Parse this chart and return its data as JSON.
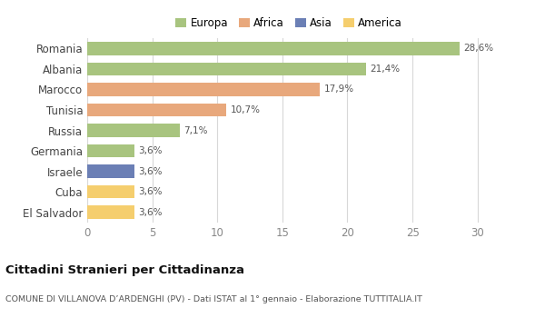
{
  "categories": [
    "Romania",
    "Albania",
    "Marocco",
    "Tunisia",
    "Russia",
    "Germania",
    "Israele",
    "Cuba",
    "El Salvador"
  ],
  "values": [
    28.6,
    21.4,
    17.9,
    10.7,
    7.1,
    3.6,
    3.6,
    3.6,
    3.6
  ],
  "labels": [
    "28,6%",
    "21,4%",
    "17,9%",
    "10,7%",
    "7,1%",
    "3,6%",
    "3,6%",
    "3,6%",
    "3,6%"
  ],
  "colors": [
    "#a8c47f",
    "#a8c47f",
    "#e8a87c",
    "#e8a87c",
    "#a8c47f",
    "#a8c47f",
    "#6b7fb5",
    "#f5ce6e",
    "#f5ce6e"
  ],
  "legend": [
    {
      "label": "Europa",
      "color": "#a8c47f"
    },
    {
      "label": "Africa",
      "color": "#e8a87c"
    },
    {
      "label": "Asia",
      "color": "#6b7fb5"
    },
    {
      "label": "America",
      "color": "#f5ce6e"
    }
  ],
  "xlim": [
    0,
    31
  ],
  "xticks": [
    0,
    5,
    10,
    15,
    20,
    25,
    30
  ],
  "title": "Cittadini Stranieri per Cittadinanza",
  "subtitle": "COMUNE DI VILLANOVA D’ARDENGHI (PV) - Dati ISTAT al 1° gennaio - Elaborazione TUTTITALIA.IT",
  "background_color": "#ffffff",
  "grid_color": "#d8d8d8",
  "bar_height": 0.65
}
